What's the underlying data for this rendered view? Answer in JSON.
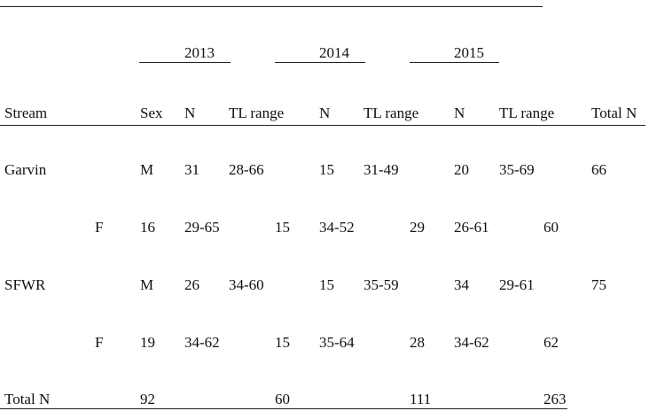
{
  "table": {
    "years": [
      "2013",
      "2014",
      "2015"
    ],
    "header": [
      "Stream",
      "Sex",
      "N",
      "TL range",
      "N",
      "TL range",
      "N",
      "TL range",
      "Total N"
    ],
    "rows": [
      [
        "Garvin",
        "M",
        "31",
        "28-66",
        "15",
        "31-49",
        "20",
        "35-69",
        "66"
      ],
      [
        "F",
        "16",
        "29-65",
        "15",
        "34-52",
        "29",
        "26-61",
        "60"
      ],
      [
        "SFWR",
        "M",
        "26",
        "34-60",
        "15",
        "35-59",
        "34",
        "29-61",
        "75"
      ],
      [
        "F",
        "19",
        "34-62",
        "15",
        "35-64",
        "28",
        "34-62",
        "62"
      ],
      [
        "Total N",
        "92",
        "60",
        "111",
        "263"
      ]
    ]
  }
}
